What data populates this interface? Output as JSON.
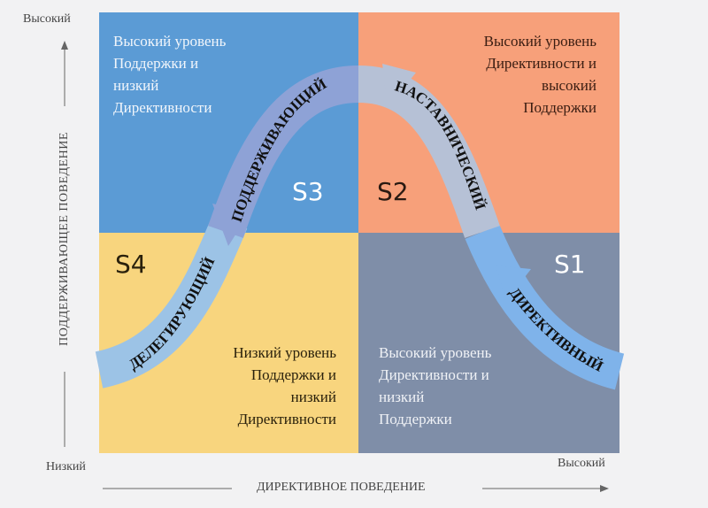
{
  "axes": {
    "y_high": "Высокий",
    "y_label": "ПОДДЕРЖИВАЮЩЕЕ ПОВЕДЕНИЕ",
    "x_low": "Низкий",
    "x_high": "Высокий",
    "x_label": "ДИРЕКТИВНОЕ ПОВЕДЕНИЕ"
  },
  "quadrants": {
    "s3": {
      "label": "S3",
      "text": "Высокий уровень\nПоддержки и\nнизкий\nДирективности",
      "color": "#5b9bd5"
    },
    "s2": {
      "label": "S2",
      "text": "Высокий уровень\nДирективности и\nвысокий\nПоддержки",
      "color": "#f7a07a"
    },
    "s4": {
      "label": "S4",
      "text": "Низкий уровень\nПоддержки и\nнизкий\nДирективности",
      "color": "#f8d57e"
    },
    "s1": {
      "label": "S1",
      "text": "Высокий уровень\nДирективности и\nнизкий\nПоддержки",
      "color": "#7f8ea8"
    }
  },
  "curve": {
    "delegating": "ДЕЛЕГИРУЮЩИЙ",
    "supporting": "ПОДДЕРЖИВАЮЩИЙ",
    "coaching": "НАСТАВНИЧЕСКИЙ",
    "directing": "ДИРЕКТИВНЫЙ"
  }
}
